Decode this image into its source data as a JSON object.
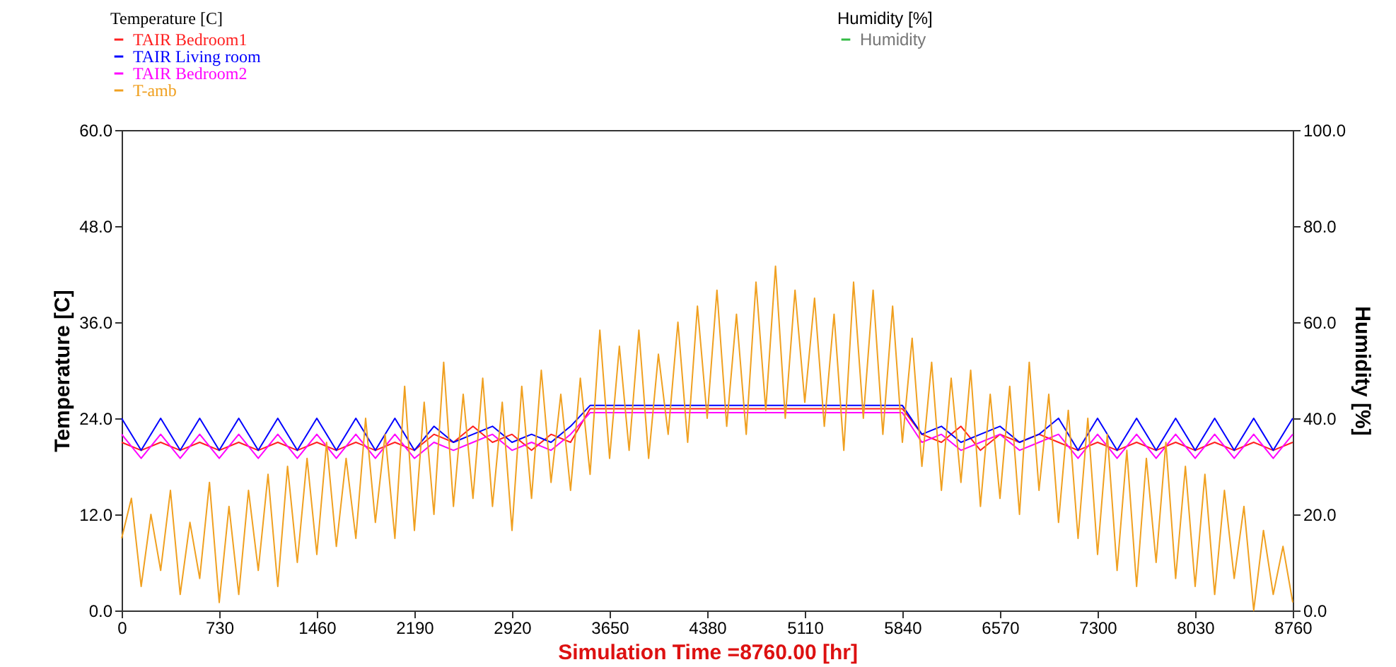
{
  "chart_data": {
    "type": "line",
    "xlabel": "Simulation Time =8760.00 [hr]",
    "ylabel": "Temperature [C]",
    "y2label": "Humidity [%]",
    "legend_title": "Temperature [C]",
    "x": [
      0,
      73,
      146,
      219,
      292,
      365,
      438,
      511,
      584,
      657,
      730,
      803,
      876,
      949,
      1022,
      1095,
      1168,
      1241,
      1314,
      1387,
      1460,
      1533,
      1606,
      1679,
      1752,
      1825,
      1898,
      1971,
      2044,
      2117,
      2190,
      2263,
      2336,
      2409,
      2482,
      2555,
      2628,
      2701,
      2774,
      2847,
      2920,
      2993,
      3066,
      3139,
      3212,
      3285,
      3358,
      3431,
      3504,
      3577,
      3650,
      3723,
      3796,
      3869,
      3942,
      4015,
      4088,
      4161,
      4234,
      4307,
      4380,
      4453,
      4526,
      4599,
      4672,
      4745,
      4818,
      4891,
      4964,
      5037,
      5110,
      5183,
      5256,
      5329,
      5402,
      5475,
      5548,
      5621,
      5694,
      5767,
      5840,
      5913,
      5986,
      6059,
      6132,
      6205,
      6278,
      6351,
      6424,
      6497,
      6570,
      6643,
      6716,
      6789,
      6862,
      6935,
      7008,
      7081,
      7154,
      7227,
      7300,
      7373,
      7446,
      7519,
      7592,
      7665,
      7738,
      7811,
      7884,
      7957,
      8030,
      8103,
      8176,
      8249,
      8322,
      8395,
      8468,
      8541,
      8614,
      8687,
      8760
    ],
    "series": [
      {
        "name": "TAIR Bedroom1",
        "color": "#ff2020",
        "x": [
          0,
          146,
          292,
          438,
          584,
          730,
          876,
          1022,
          1168,
          1314,
          1460,
          1606,
          1752,
          1898,
          2044,
          2190,
          2336,
          2482,
          2628,
          2774,
          2920,
          3066,
          3212,
          3358,
          3504,
          3650,
          3796,
          3942,
          4088,
          4234,
          4380,
          4526,
          4672,
          4818,
          4964,
          5110,
          5256,
          5402,
          5548,
          5694,
          5840,
          5986,
          6132,
          6278,
          6424,
          6570,
          6716,
          6862,
          7008,
          7154,
          7300,
          7446,
          7592,
          7738,
          7884,
          8030,
          8176,
          8322,
          8468,
          8614,
          8760
        ],
        "values": [
          21,
          20,
          21,
          20,
          21,
          20,
          21,
          20,
          21,
          20,
          21,
          20,
          21,
          20,
          21,
          20,
          22,
          21,
          23,
          21,
          22,
          20,
          22,
          21,
          25.2,
          25.2,
          25.2,
          25.2,
          25.2,
          25.2,
          25.2,
          25.2,
          25.2,
          25.2,
          25.2,
          25.2,
          25.2,
          25.2,
          25.2,
          25.2,
          25.2,
          22,
          21,
          23,
          20,
          22,
          21,
          22,
          21,
          20,
          21,
          20,
          21,
          20,
          21,
          20,
          21,
          20,
          21,
          20,
          21
        ]
      },
      {
        "name": "TAIR Living room",
        "color": "#0000ff",
        "x": [
          0,
          146,
          292,
          438,
          584,
          730,
          876,
          1022,
          1168,
          1314,
          1460,
          1606,
          1752,
          1898,
          2044,
          2190,
          2336,
          2482,
          2628,
          2774,
          2920,
          3066,
          3212,
          3358,
          3504,
          3650,
          3796,
          3942,
          4088,
          4234,
          4380,
          4526,
          4672,
          4818,
          4964,
          5110,
          5256,
          5402,
          5548,
          5694,
          5840,
          5986,
          6132,
          6278,
          6424,
          6570,
          6716,
          6862,
          7008,
          7154,
          7300,
          7446,
          7592,
          7738,
          7884,
          8030,
          8176,
          8322,
          8468,
          8614,
          8760
        ],
        "values": [
          24,
          20,
          24,
          20,
          24,
          20,
          24,
          20,
          24,
          20,
          24,
          20,
          24,
          20,
          24,
          20,
          23,
          21,
          22,
          23,
          21,
          22,
          21,
          23,
          25.6,
          25.6,
          25.6,
          25.6,
          25.6,
          25.6,
          25.6,
          25.6,
          25.6,
          25.6,
          25.6,
          25.6,
          25.6,
          25.6,
          25.6,
          25.6,
          25.6,
          22,
          23,
          21,
          22,
          23,
          21,
          22,
          24,
          20,
          24,
          20,
          24,
          20,
          24,
          20,
          24,
          20,
          24,
          20,
          24
        ]
      },
      {
        "name": "TAIR Bedroom2",
        "color": "#ff00ff",
        "x": [
          0,
          146,
          292,
          438,
          584,
          730,
          876,
          1022,
          1168,
          1314,
          1460,
          1606,
          1752,
          1898,
          2044,
          2190,
          2336,
          2482,
          2628,
          2774,
          2920,
          3066,
          3212,
          3358,
          3504,
          3650,
          3796,
          3942,
          4088,
          4234,
          4380,
          4526,
          4672,
          4818,
          4964,
          5110,
          5256,
          5402,
          5548,
          5694,
          5840,
          5986,
          6132,
          6278,
          6424,
          6570,
          6716,
          6862,
          7008,
          7154,
          7300,
          7446,
          7592,
          7738,
          7884,
          8030,
          8176,
          8322,
          8468,
          8614,
          8760
        ],
        "values": [
          22,
          19,
          22,
          19,
          22,
          19,
          22,
          19,
          22,
          19,
          22,
          19,
          22,
          19,
          22,
          19,
          21,
          20,
          21,
          22,
          20,
          21,
          20,
          22,
          24.7,
          24.7,
          24.7,
          24.7,
          24.7,
          24.7,
          24.7,
          24.7,
          24.7,
          24.7,
          24.7,
          24.7,
          24.7,
          24.7,
          24.7,
          24.7,
          24.7,
          21,
          22,
          20,
          21,
          22,
          20,
          21,
          22,
          19,
          22,
          19,
          22,
          19,
          22,
          19,
          22,
          19,
          22,
          19,
          22
        ]
      },
      {
        "name": "T-amb",
        "color": "#f0a020",
        "values": [
          9,
          14,
          3,
          12,
          5,
          15,
          2,
          11,
          4,
          16,
          1,
          13,
          2,
          15,
          5,
          17,
          3,
          18,
          6,
          19,
          7,
          21,
          8,
          19,
          9,
          24,
          11,
          22,
          9,
          28,
          10,
          26,
          12,
          31,
          13,
          27,
          14,
          29,
          13,
          26,
          10,
          28,
          14,
          30,
          16,
          27,
          15,
          29,
          17,
          35,
          19,
          33,
          20,
          35,
          19,
          32,
          22,
          36,
          21,
          38,
          24,
          40,
          23,
          37,
          22,
          41,
          25,
          43,
          24,
          40,
          26,
          39,
          23,
          37,
          20,
          41,
          24,
          40,
          22,
          38,
          21,
          34,
          18,
          31,
          15,
          29,
          16,
          30,
          13,
          27,
          14,
          28,
          12,
          31,
          15,
          27,
          11,
          25,
          9,
          24,
          7,
          22,
          5,
          20,
          3,
          19,
          6,
          21,
          4,
          18,
          3,
          17,
          2,
          15,
          4,
          13,
          0,
          10,
          2,
          8,
          1
        ]
      },
      {
        "name": "Humidity",
        "color": "#33bb44",
        "axis": "y2",
        "values": [
          null,
          null,
          null,
          null,
          null,
          null,
          null,
          null,
          null,
          null,
          null,
          null,
          null,
          null,
          null,
          null,
          null,
          null,
          null,
          null,
          null,
          null,
          null,
          null,
          null,
          null,
          null,
          null,
          null,
          null,
          null,
          null,
          null,
          null,
          null,
          null,
          null,
          null,
          null,
          null,
          null,
          null,
          null,
          null,
          null,
          null,
          null,
          null,
          null,
          null,
          null,
          null,
          null,
          null,
          null,
          null,
          null,
          null,
          null,
          null,
          null,
          null,
          null,
          null,
          null,
          null,
          null,
          null,
          null,
          null,
          null,
          null,
          null,
          null,
          null,
          null,
          null,
          null,
          null,
          null,
          null,
          null,
          null,
          null,
          null,
          null,
          null,
          null,
          null,
          null,
          null,
          null,
          null,
          null,
          null,
          null,
          null,
          null,
          null,
          null,
          null,
          null,
          null,
          null,
          null,
          null,
          null,
          null,
          null,
          null,
          null,
          null,
          null,
          null,
          null,
          null,
          null,
          null,
          null,
          null,
          null
        ]
      }
    ],
    "xlim": [
      0,
      8760
    ],
    "xticks": [
      0,
      730,
      1460,
      2190,
      2920,
      3650,
      4380,
      5110,
      5840,
      6570,
      7300,
      8030,
      8760
    ],
    "ylim": [
      0,
      60
    ],
    "yticks": [
      {
        "value": 0,
        "label": "0.0"
      },
      {
        "value": 12,
        "label": "12.0"
      },
      {
        "value": 24,
        "label": "24.0"
      },
      {
        "value": 36,
        "label": "36.0"
      },
      {
        "value": 48,
        "label": "48.0"
      },
      {
        "value": 60,
        "label": "60.0"
      }
    ],
    "y2lim": [
      0,
      100
    ],
    "y2ticks": [
      {
        "value": 0,
        "label": "0.0"
      },
      {
        "value": 20,
        "label": "20.0"
      },
      {
        "value": 40,
        "label": "40.0"
      },
      {
        "value": 60,
        "label": "60.0"
      },
      {
        "value": 80,
        "label": "80.0"
      },
      {
        "value": 100,
        "label": "100.0"
      }
    ],
    "legend": "top left",
    "line_style": "solid"
  }
}
